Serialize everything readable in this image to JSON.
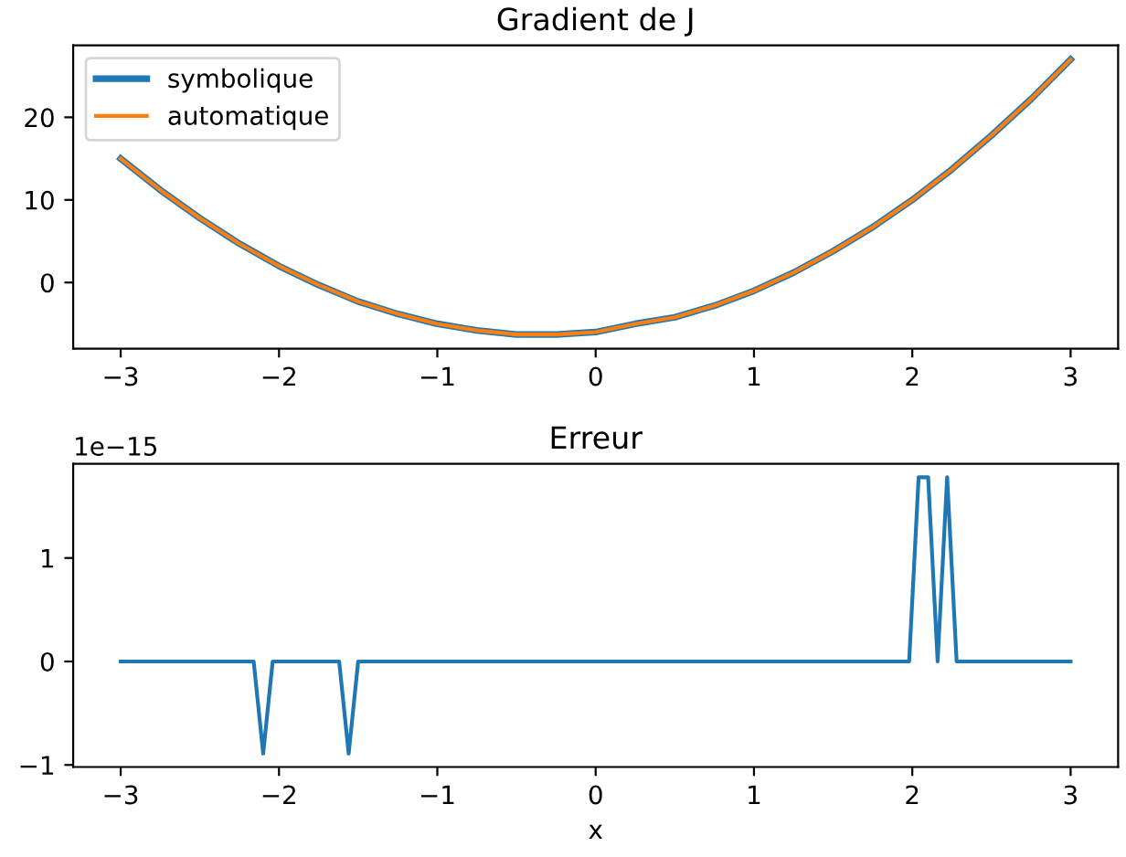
{
  "chart_data": [
    {
      "type": "line",
      "title": "Gradient de J",
      "legend": "top left",
      "grid": false,
      "x": [
        -3,
        -2.75,
        -2.5,
        -2.25,
        -2,
        -1.75,
        -1.5,
        -1.25,
        -1,
        -0.75,
        -0.5,
        -0.33,
        -0.25,
        0,
        0.25,
        0.5,
        0.75,
        1,
        1.25,
        1.5,
        1.75,
        2,
        2.25,
        2.5,
        2.75,
        3
      ],
      "series": [
        {
          "name": "symbolique",
          "color": "#1f77b4",
          "values": [
            15,
            11.2,
            7.8,
            4.7,
            2,
            -0.3,
            -2.3,
            -3.8,
            -5,
            -5.8,
            -6.3,
            -6.3,
            -6.3,
            -6,
            -5,
            -4.2,
            -2.8,
            -1,
            1.2,
            3.8,
            6.7,
            10,
            13.7,
            17.8,
            22.2,
            27
          ]
        },
        {
          "name": "automatique",
          "color": "#ff7f0e",
          "values": [
            15,
            11.2,
            7.8,
            4.7,
            2,
            -0.3,
            -2.3,
            -3.8,
            -5,
            -5.8,
            -6.3,
            -6.3,
            -6.3,
            -6,
            -5,
            -4.2,
            -2.8,
            -1,
            1.2,
            3.8,
            6.7,
            10,
            13.7,
            17.8,
            22.2,
            27
          ]
        }
      ],
      "xlim": [
        -3.3,
        3.3
      ],
      "xticks": [
        -3,
        -2,
        -1,
        0,
        1,
        2,
        3
      ],
      "ylim": [
        -8,
        28.7
      ],
      "yticks": [
        0,
        10,
        20
      ]
    },
    {
      "type": "line",
      "title": "Erreur",
      "xlabel": "x",
      "grid": false,
      "legend": false,
      "annotations": [
        "1e−15"
      ],
      "x": [
        -3,
        -2.16,
        -2.1,
        -2.04,
        -1.62,
        -1.56,
        -1.5,
        1.98,
        2.04,
        2.1,
        2.16,
        2.22,
        2.28,
        3
      ],
      "series": [
        {
          "color": "#1f77b4",
          "values": [
            0,
            0,
            -0.89,
            0,
            0,
            -0.89,
            0,
            0,
            1.78,
            1.78,
            0,
            1.78,
            0,
            0
          ]
        }
      ],
      "xlim": [
        -3.3,
        3.3
      ],
      "xticks": [
        -3,
        -2,
        -1,
        0,
        1,
        2,
        3
      ],
      "ylim": [
        -1.02,
        1.91
      ],
      "yticks": [
        -1,
        0,
        1
      ]
    }
  ]
}
